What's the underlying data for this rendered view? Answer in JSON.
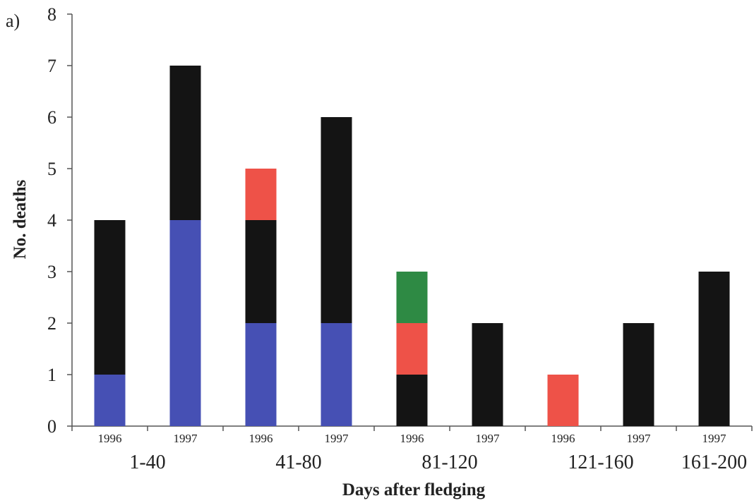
{
  "chart_data": {
    "type": "bar",
    "stacked": true,
    "panel_label": "a)",
    "title": "",
    "xlabel": "Days after fledging",
    "ylabel": "No. deaths",
    "ylim": [
      0,
      8
    ],
    "yticks": [
      0,
      1,
      2,
      3,
      4,
      5,
      6,
      7,
      8
    ],
    "grid": false,
    "groups": [
      "1-40",
      "41-80",
      "81-120",
      "121-160",
      "161-200"
    ],
    "categories": [
      "1996",
      "1997",
      "1996",
      "1997",
      "1996",
      "1997",
      "1996",
      "1997",
      "1997"
    ],
    "category_group": [
      0,
      0,
      1,
      1,
      2,
      2,
      3,
      3,
      4
    ],
    "series": [
      {
        "color": "#4650b4",
        "values": [
          1,
          4,
          2,
          2,
          0,
          0,
          0,
          0,
          0
        ]
      },
      {
        "color": "#141414",
        "values": [
          3,
          3,
          2,
          4,
          1,
          2,
          0,
          2,
          3
        ]
      },
      {
        "color": "#ee5248",
        "values": [
          0,
          0,
          1,
          0,
          1,
          0,
          1,
          0,
          0
        ]
      },
      {
        "color": "#2e8a44",
        "values": [
          0,
          0,
          0,
          0,
          1,
          0,
          0,
          0,
          0
        ]
      }
    ]
  }
}
